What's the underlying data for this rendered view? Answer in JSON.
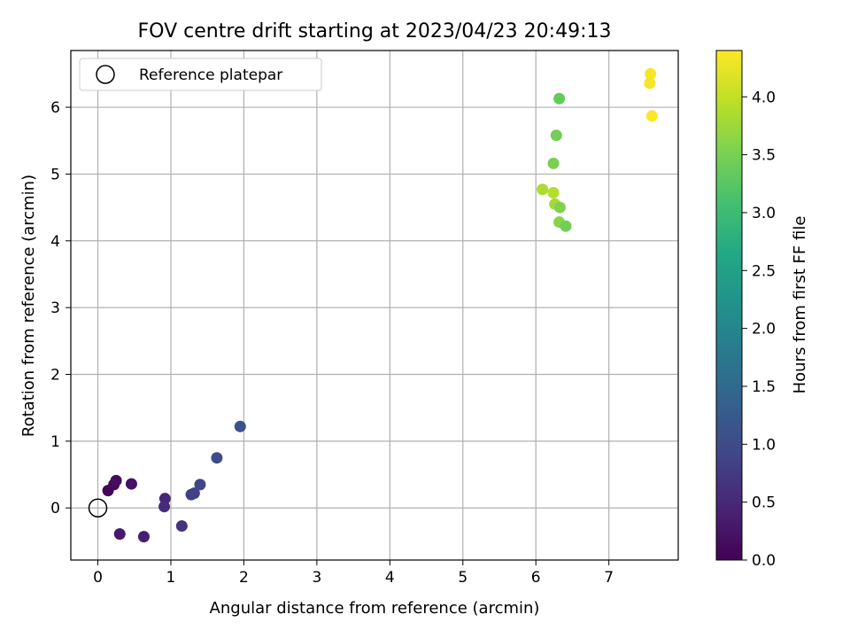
{
  "chart_data": {
    "type": "scatter",
    "title": "FOV centre drift starting at 2023/04/23 20:49:13",
    "xlabel": "Angular distance from reference (arcmin)",
    "ylabel": "Rotation from reference (arcmin)",
    "xlim": [
      -0.37,
      7.95
    ],
    "ylim": [
      -0.78,
      6.85
    ],
    "xticks": [
      "0",
      "1",
      "2",
      "3",
      "4",
      "5",
      "6",
      "7"
    ],
    "yticks": [
      "0",
      "1",
      "2",
      "3",
      "4",
      "5",
      "6"
    ],
    "grid": true,
    "legend": {
      "placement": "upper-left",
      "entries": [
        "Reference platepar"
      ]
    },
    "reference_point": {
      "label": "Reference platepar",
      "x": 0,
      "y": 0,
      "marker": "open-circle"
    },
    "colorbar": {
      "label": "Hours from first FF file",
      "colormap": "viridis",
      "range": [
        0.0,
        4.4
      ],
      "ticks": [
        "0.0",
        "0.5",
        "1.0",
        "1.5",
        "2.0",
        "2.5",
        "3.0",
        "3.5",
        "4.0"
      ]
    },
    "series": [
      {
        "points": [
          {
            "x": 0.14,
            "y": 0.26,
            "hours": 0.05
          },
          {
            "x": 0.22,
            "y": 0.35,
            "hours": 0.1
          },
          {
            "x": 0.25,
            "y": 0.41,
            "hours": 0.15
          },
          {
            "x": 0.46,
            "y": 0.36,
            "hours": 0.22
          },
          {
            "x": 0.3,
            "y": -0.39,
            "hours": 0.3
          },
          {
            "x": 0.63,
            "y": -0.43,
            "hours": 0.38
          },
          {
            "x": 0.92,
            "y": 0.14,
            "hours": 0.5
          },
          {
            "x": 0.91,
            "y": 0.02,
            "hours": 0.55
          },
          {
            "x": 1.15,
            "y": -0.27,
            "hours": 0.65
          },
          {
            "x": 1.28,
            "y": 0.2,
            "hours": 0.8
          },
          {
            "x": 1.32,
            "y": 0.22,
            "hours": 0.85
          },
          {
            "x": 1.4,
            "y": 0.35,
            "hours": 0.92
          },
          {
            "x": 1.63,
            "y": 0.75,
            "hours": 1.0
          },
          {
            "x": 1.95,
            "y": 1.22,
            "hours": 1.1
          },
          {
            "x": 6.32,
            "y": 6.13,
            "hours": 3.35
          },
          {
            "x": 6.28,
            "y": 5.58,
            "hours": 3.45
          },
          {
            "x": 6.24,
            "y": 5.16,
            "hours": 3.5
          },
          {
            "x": 6.09,
            "y": 4.77,
            "hours": 3.85
          },
          {
            "x": 6.24,
            "y": 4.72,
            "hours": 3.9
          },
          {
            "x": 6.26,
            "y": 4.55,
            "hours": 3.8
          },
          {
            "x": 6.33,
            "y": 4.5,
            "hours": 3.55
          },
          {
            "x": 6.32,
            "y": 4.28,
            "hours": 3.6
          },
          {
            "x": 6.41,
            "y": 4.22,
            "hours": 3.45
          },
          {
            "x": 7.57,
            "y": 6.5,
            "hours": 4.35
          },
          {
            "x": 7.56,
            "y": 6.36,
            "hours": 4.33
          },
          {
            "x": 7.59,
            "y": 5.87,
            "hours": 4.38
          }
        ]
      }
    ]
  }
}
